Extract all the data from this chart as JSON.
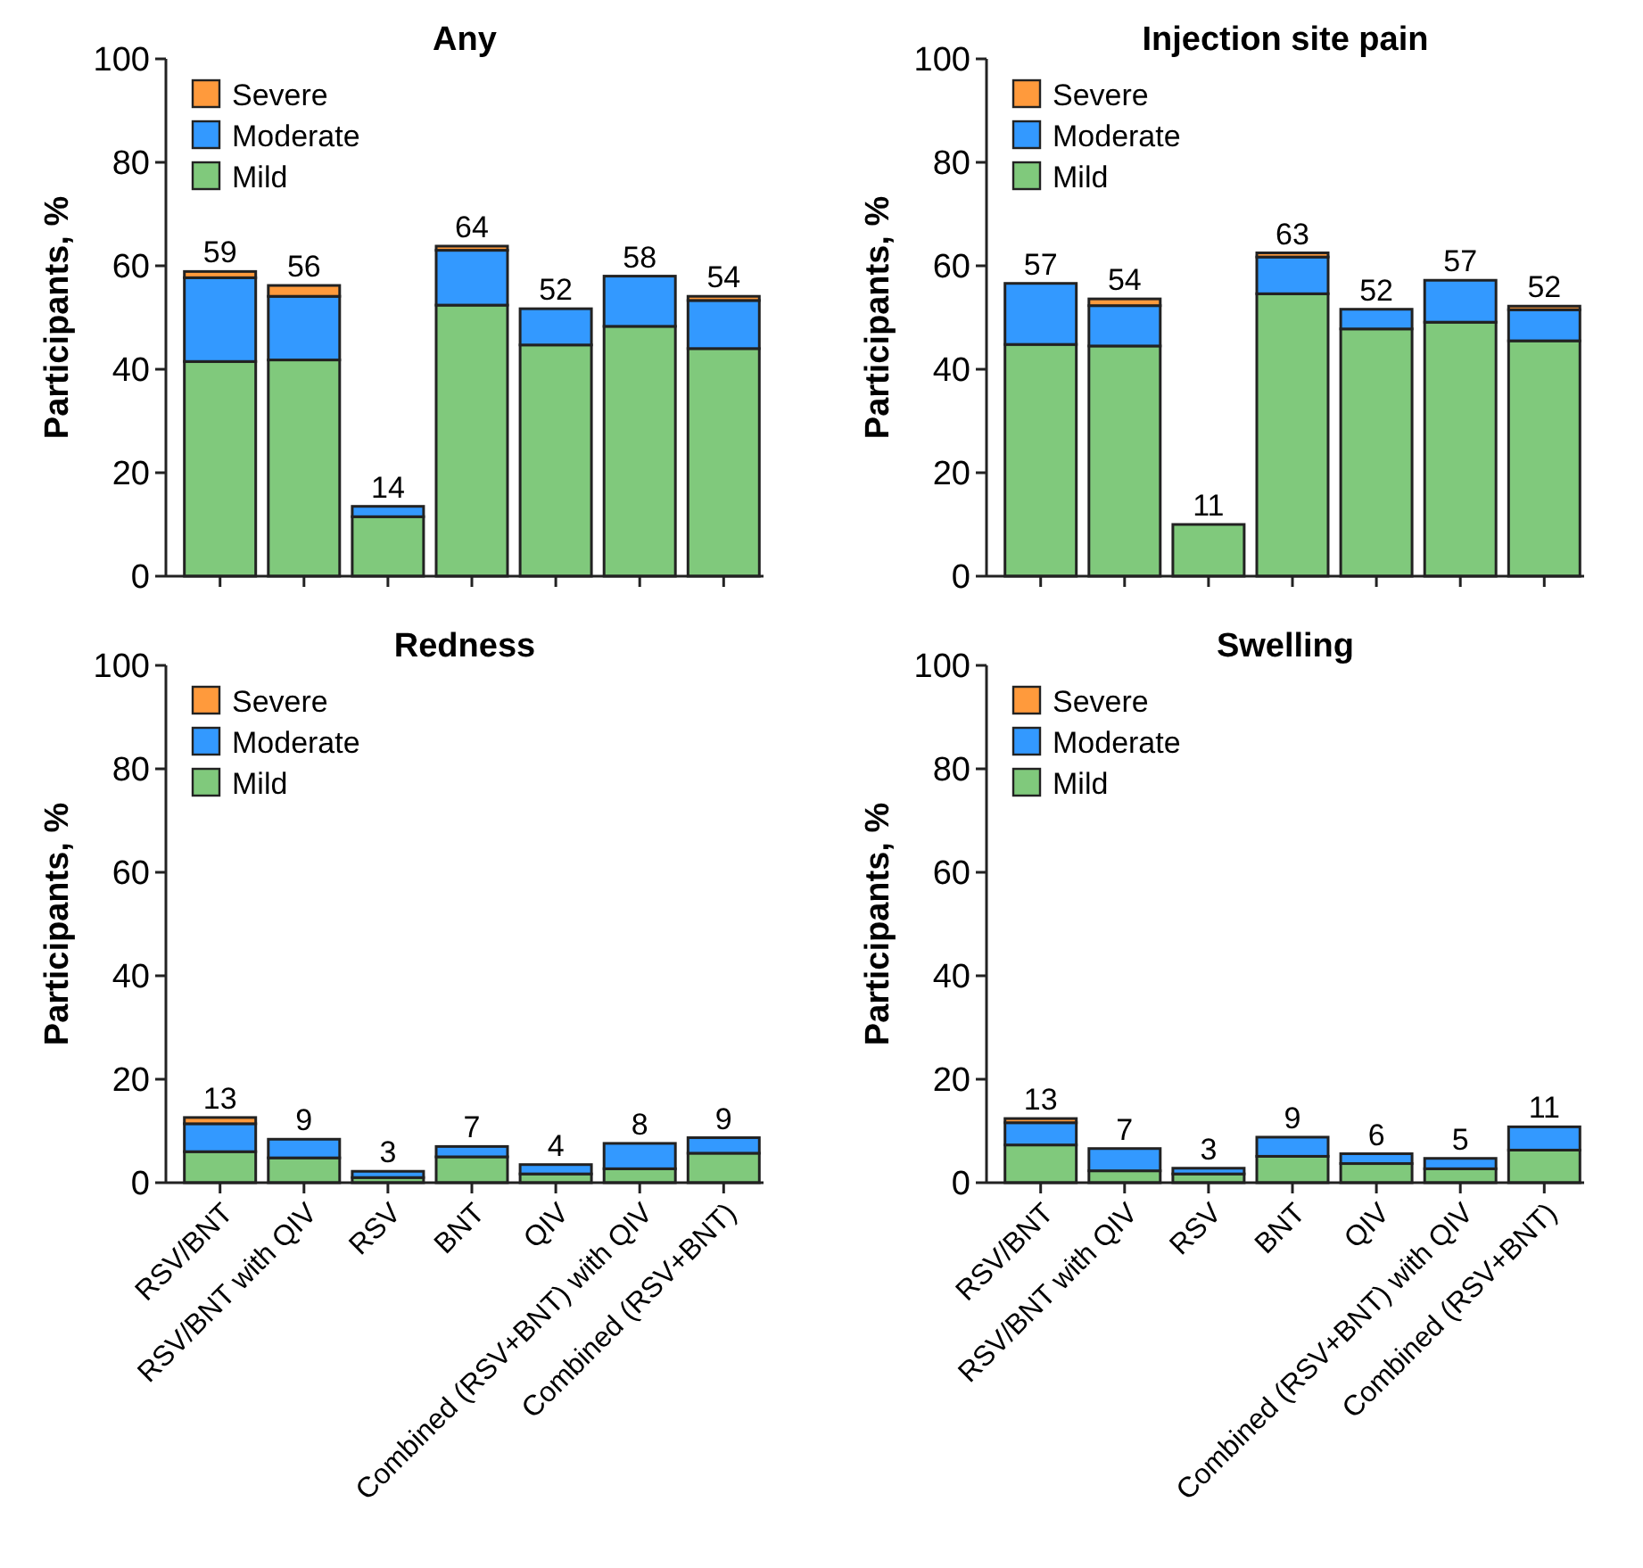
{
  "chart_data": [
    {
      "type": "bar",
      "title": "Any",
      "ylabel": "Participants, %",
      "categories": [
        null,
        null,
        null,
        null,
        null,
        null,
        null
      ],
      "stacked": true,
      "ylim": [
        0,
        100
      ],
      "yticks": [
        0,
        20,
        40,
        60,
        80,
        100
      ],
      "legend": "top left",
      "series": [
        {
          "name": "Mild",
          "color": "#80c97c",
          "values": [
            41.5,
            41.8,
            11.5,
            52.4,
            44.7,
            48.3,
            44.0
          ]
        },
        {
          "name": "Moderate",
          "color": "#3399ff",
          "values": [
            16.2,
            12.3,
            2.0,
            10.6,
            7.0,
            9.7,
            9.3
          ]
        },
        {
          "name": "Severe",
          "color": "#ff9a3c",
          "values": [
            1.2,
            2.1,
            0,
            0.8,
            0,
            0,
            0.8
          ]
        }
      ],
      "totals": [
        "59",
        "56",
        "14",
        "64",
        "52",
        "58",
        "54"
      ]
    },
    {
      "type": "bar",
      "title": "Injection site pain",
      "ylabel": "Participants, %",
      "categories": [
        null,
        null,
        null,
        null,
        null,
        null,
        null
      ],
      "stacked": true,
      "ylim": [
        0,
        100
      ],
      "yticks": [
        0,
        20,
        40,
        60,
        80,
        100
      ],
      "legend": "top left",
      "series": [
        {
          "name": "Mild",
          "color": "#80c97c",
          "values": [
            44.8,
            44.5,
            10.0,
            54.6,
            47.8,
            49.1,
            45.5
          ]
        },
        {
          "name": "Moderate",
          "color": "#3399ff",
          "values": [
            11.8,
            7.8,
            0,
            7.1,
            3.8,
            8.1,
            6.0
          ]
        },
        {
          "name": "Severe",
          "color": "#ff9a3c",
          "values": [
            0,
            1.3,
            0,
            0.8,
            0,
            0,
            0.7
          ]
        }
      ],
      "totals": [
        "57",
        "54",
        "11",
        "63",
        "52",
        "57",
        "52"
      ]
    },
    {
      "type": "bar",
      "title": "Redness",
      "ylabel": "Participants, %",
      "categories": [
        "RSV/BNT",
        "RSV/BNT with QIV",
        "RSV",
        "BNT",
        "QIV",
        "Combined (RSV+BNT) with QIV",
        "Combined (RSV+BNT)"
      ],
      "stacked": true,
      "ylim": [
        0,
        100
      ],
      "yticks": [
        0,
        20,
        40,
        60,
        80,
        100
      ],
      "legend": "top left",
      "series": [
        {
          "name": "Mild",
          "color": "#80c97c",
          "values": [
            6.0,
            4.8,
            1.0,
            5.0,
            1.7,
            2.7,
            5.7
          ]
        },
        {
          "name": "Moderate",
          "color": "#3399ff",
          "values": [
            5.4,
            3.6,
            1.2,
            2.0,
            1.8,
            4.9,
            3.0
          ]
        },
        {
          "name": "Severe",
          "color": "#ff9a3c",
          "values": [
            1.2,
            0,
            0,
            0,
            0,
            0,
            0
          ]
        }
      ],
      "totals": [
        "13",
        "9",
        "3",
        "7",
        "4",
        "8",
        "9"
      ]
    },
    {
      "type": "bar",
      "title": "Swelling",
      "ylabel": "Participants, %",
      "categories": [
        "RSV/BNT",
        "RSV/BNT with QIV",
        "RSV",
        "BNT",
        "QIV",
        "Combined (RSV+BNT) with QIV",
        "Combined (RSV+BNT)"
      ],
      "stacked": true,
      "ylim": [
        0,
        100
      ],
      "yticks": [
        0,
        20,
        40,
        60,
        80,
        100
      ],
      "legend": "top left",
      "series": [
        {
          "name": "Mild",
          "color": "#80c97c",
          "values": [
            7.3,
            2.3,
            1.7,
            5.1,
            3.7,
            2.7,
            6.3
          ]
        },
        {
          "name": "Moderate",
          "color": "#3399ff",
          "values": [
            4.3,
            4.3,
            1.1,
            3.7,
            1.9,
            2.0,
            4.5
          ]
        },
        {
          "name": "Severe",
          "color": "#ff9a3c",
          "values": [
            0.8,
            0,
            0,
            0,
            0,
            0,
            0
          ]
        }
      ],
      "totals": [
        "13",
        "7",
        "3",
        "9",
        "6",
        "5",
        "11"
      ]
    }
  ]
}
